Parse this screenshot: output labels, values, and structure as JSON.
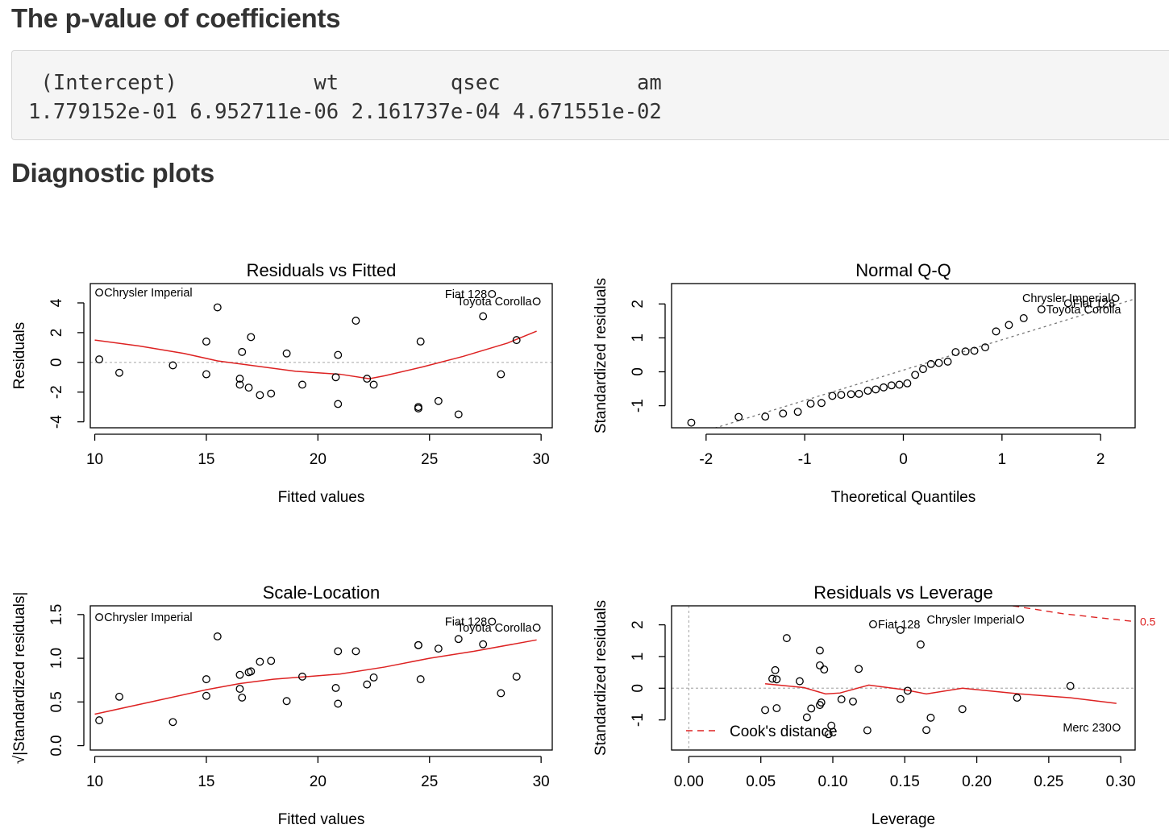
{
  "headings": {
    "pvalue": "The p-value of coefficients",
    "diagnostic": "Diagnostic plots"
  },
  "console_output": {
    "names": [
      "(Intercept)",
      "wt",
      "qsec",
      "am"
    ],
    "values": [
      "1.779152e-01",
      "6.952711e-06",
      "2.161737e-04",
      "4.671551e-02"
    ]
  },
  "colors": {
    "smoother": "#dd2222",
    "reference": "#b0b0b0",
    "qqline": "#777777"
  },
  "chart_data": [
    {
      "type": "scatter",
      "title": "Residuals vs Fitted",
      "xlabel": "Fitted values",
      "ylabel": "Residuals",
      "xlim": [
        9.8,
        30.5
      ],
      "ylim": [
        -4.4,
        5.3
      ],
      "xticks": [
        10,
        15,
        20,
        25,
        30
      ],
      "yticks": [
        -4,
        -2,
        0,
        2,
        4
      ],
      "grid": false,
      "hline": 0,
      "points": [
        [
          10.2,
          4.7
        ],
        [
          10.2,
          0.2
        ],
        [
          11.1,
          -0.7
        ],
        [
          13.5,
          -0.2
        ],
        [
          15.0,
          1.4
        ],
        [
          15.0,
          -0.8
        ],
        [
          15.5,
          3.7
        ],
        [
          16.5,
          -1.1
        ],
        [
          16.5,
          -1.5
        ],
        [
          16.6,
          0.7
        ],
        [
          16.9,
          -1.7
        ],
        [
          17.0,
          1.7
        ],
        [
          17.4,
          -2.2
        ],
        [
          17.9,
          -2.1
        ],
        [
          18.6,
          0.6
        ],
        [
          19.3,
          -1.5
        ],
        [
          20.8,
          -1.0
        ],
        [
          20.9,
          0.5
        ],
        [
          20.9,
          -2.8
        ],
        [
          21.7,
          2.8
        ],
        [
          22.2,
          -1.1
        ],
        [
          22.5,
          -1.5
        ],
        [
          24.5,
          -3.0
        ],
        [
          24.5,
          -3.1
        ],
        [
          24.6,
          1.4
        ],
        [
          25.4,
          -2.6
        ],
        [
          26.3,
          -3.5
        ],
        [
          27.4,
          3.1
        ],
        [
          27.8,
          4.6
        ],
        [
          28.2,
          -0.8
        ],
        [
          28.9,
          1.5
        ],
        [
          29.8,
          4.1
        ]
      ],
      "smoother": [
        [
          10.0,
          1.5
        ],
        [
          12.0,
          1.1
        ],
        [
          14.0,
          0.6
        ],
        [
          15.5,
          0.1
        ],
        [
          17.0,
          -0.2
        ],
        [
          19.0,
          -0.6
        ],
        [
          21.0,
          -0.8
        ],
        [
          22.3,
          -1.1
        ],
        [
          23.0,
          -0.9
        ],
        [
          24.7,
          -0.3
        ],
        [
          26.5,
          0.4
        ],
        [
          28.5,
          1.3
        ],
        [
          29.8,
          2.1
        ]
      ],
      "labels": [
        {
          "text": "Chrysler Imperial",
          "x": 10.2,
          "y": 4.7,
          "side": "right"
        },
        {
          "text": "Fiat 128",
          "x": 27.8,
          "y": 4.6,
          "side": "left"
        },
        {
          "text": "Toyota Corolla",
          "x": 29.8,
          "y": 4.1,
          "side": "left"
        }
      ]
    },
    {
      "type": "scatter",
      "title": "Normal Q-Q",
      "xlabel": "Theoretical Quantiles",
      "ylabel": "Standardized residuals",
      "xlim": [
        -2.35,
        2.35
      ],
      "ylim": [
        -1.65,
        2.6
      ],
      "xticks": [
        -2,
        -1,
        0,
        1,
        2
      ],
      "yticks": [
        -1,
        0,
        1,
        2
      ],
      "grid": false,
      "qqline": [
        [
          -2.35,
          -2.05
        ],
        [
          2.35,
          2.15
        ]
      ],
      "points": [
        [
          -2.15,
          -1.5
        ],
        [
          -1.67,
          -1.33
        ],
        [
          -1.4,
          -1.32
        ],
        [
          -1.22,
          -1.23
        ],
        [
          -1.07,
          -1.18
        ],
        [
          -0.94,
          -0.94
        ],
        [
          -0.83,
          -0.92
        ],
        [
          -0.72,
          -0.71
        ],
        [
          -0.63,
          -0.68
        ],
        [
          -0.53,
          -0.66
        ],
        [
          -0.45,
          -0.65
        ],
        [
          -0.36,
          -0.56
        ],
        [
          -0.28,
          -0.52
        ],
        [
          -0.2,
          -0.46
        ],
        [
          -0.12,
          -0.4
        ],
        [
          -0.04,
          -0.38
        ],
        [
          0.04,
          -0.34
        ],
        [
          0.12,
          -0.09
        ],
        [
          0.2,
          0.08
        ],
        [
          0.28,
          0.23
        ],
        [
          0.36,
          0.26
        ],
        [
          0.45,
          0.3
        ],
        [
          0.53,
          0.58
        ],
        [
          0.63,
          0.6
        ],
        [
          0.72,
          0.62
        ],
        [
          0.83,
          0.72
        ],
        [
          0.94,
          1.19
        ],
        [
          1.07,
          1.38
        ],
        [
          1.22,
          1.58
        ],
        [
          1.4,
          1.84
        ],
        [
          1.67,
          2.02
        ],
        [
          2.15,
          2.17
        ]
      ],
      "labels": [
        {
          "text": "Chrysler Imperial",
          "x": 2.15,
          "y": 2.17,
          "side": "left"
        },
        {
          "text": "Fiat 128",
          "x": 1.67,
          "y": 2.02,
          "side": "right"
        },
        {
          "text": "Toyota Corolla",
          "x": 1.4,
          "y": 1.84,
          "side": "right"
        }
      ]
    },
    {
      "type": "scatter",
      "title": "Scale-Location",
      "xlabel": "Fitted values",
      "ylabel": "√|Standardized residuals|",
      "xlim": [
        9.8,
        30.5
      ],
      "ylim": [
        -0.05,
        1.6
      ],
      "xticks": [
        10,
        15,
        20,
        25,
        30
      ],
      "yticks": [
        0.0,
        0.5,
        1.0,
        1.5
      ],
      "grid": false,
      "points": [
        [
          10.2,
          1.47
        ],
        [
          10.2,
          0.29
        ],
        [
          11.1,
          0.56
        ],
        [
          13.5,
          0.27
        ],
        [
          15.0,
          0.76
        ],
        [
          15.0,
          0.57
        ],
        [
          15.5,
          1.25
        ],
        [
          16.5,
          0.81
        ],
        [
          16.5,
          0.65
        ],
        [
          16.6,
          0.55
        ],
        [
          16.9,
          0.84
        ],
        [
          17.0,
          0.85
        ],
        [
          17.4,
          0.96
        ],
        [
          17.9,
          0.97
        ],
        [
          18.6,
          0.51
        ],
        [
          19.3,
          0.79
        ],
        [
          20.8,
          0.66
        ],
        [
          20.9,
          0.48
        ],
        [
          20.9,
          1.08
        ],
        [
          21.7,
          1.08
        ],
        [
          22.2,
          0.7
        ],
        [
          22.5,
          0.78
        ],
        [
          24.5,
          1.15
        ],
        [
          24.5,
          1.15
        ],
        [
          24.6,
          0.76
        ],
        [
          25.4,
          1.11
        ],
        [
          26.3,
          1.22
        ],
        [
          27.4,
          1.16
        ],
        [
          27.8,
          1.42
        ],
        [
          28.2,
          0.6
        ],
        [
          28.9,
          0.79
        ],
        [
          29.8,
          1.35
        ]
      ],
      "smoother": [
        [
          10.0,
          0.36
        ],
        [
          12.5,
          0.5
        ],
        [
          15.0,
          0.64
        ],
        [
          16.5,
          0.71
        ],
        [
          18.0,
          0.76
        ],
        [
          19.5,
          0.79
        ],
        [
          21.0,
          0.82
        ],
        [
          23.0,
          0.9
        ],
        [
          25.0,
          1.0
        ],
        [
          27.0,
          1.08
        ],
        [
          29.8,
          1.21
        ]
      ],
      "labels": [
        {
          "text": "Chrysler Imperial",
          "x": 10.2,
          "y": 1.47,
          "side": "right"
        },
        {
          "text": "Fiat 128",
          "x": 27.8,
          "y": 1.42,
          "side": "left"
        },
        {
          "text": "Toyota Corolla",
          "x": 29.8,
          "y": 1.35,
          "side": "left"
        }
      ]
    },
    {
      "type": "scatter",
      "title": "Residuals vs Leverage",
      "xlabel": "Leverage",
      "ylabel": "Standardized residuals",
      "xlim": [
        -0.012,
        0.31
      ],
      "ylim": [
        -1.95,
        2.6
      ],
      "xticks": [
        0.0,
        0.05,
        0.1,
        0.15,
        0.2,
        0.25,
        0.3
      ],
      "yticks": [
        -1,
        0,
        1,
        2
      ],
      "grid": false,
      "hline": 0,
      "vline": 0,
      "points": [
        [
          0.053,
          -0.69
        ],
        [
          0.058,
          0.3
        ],
        [
          0.06,
          0.57
        ],
        [
          0.061,
          -0.63
        ],
        [
          0.061,
          0.28
        ],
        [
          0.068,
          1.58
        ],
        [
          0.077,
          0.22
        ],
        [
          0.082,
          -0.92
        ],
        [
          0.085,
          -0.64
        ],
        [
          0.091,
          -0.53
        ],
        [
          0.091,
          0.72
        ],
        [
          0.091,
          1.19
        ],
        [
          0.092,
          -0.45
        ],
        [
          0.094,
          0.59
        ],
        [
          0.097,
          -1.45
        ],
        [
          0.099,
          -1.18
        ],
        [
          0.106,
          -0.35
        ],
        [
          0.114,
          -0.42
        ],
        [
          0.118,
          0.61
        ],
        [
          0.124,
          -1.33
        ],
        [
          0.128,
          2.02
        ],
        [
          0.147,
          1.84
        ],
        [
          0.147,
          -0.34
        ],
        [
          0.152,
          -0.08
        ],
        [
          0.165,
          -1.32
        ],
        [
          0.168,
          -0.93
        ],
        [
          0.161,
          1.38
        ],
        [
          0.19,
          -0.66
        ],
        [
          0.228,
          -0.3
        ],
        [
          0.23,
          2.17
        ],
        [
          0.265,
          0.07
        ],
        [
          0.297,
          -1.24
        ]
      ],
      "smoother": [
        [
          0.053,
          0.14
        ],
        [
          0.08,
          0.02
        ],
        [
          0.095,
          -0.18
        ],
        [
          0.105,
          -0.15
        ],
        [
          0.125,
          0.1
        ],
        [
          0.15,
          -0.05
        ],
        [
          0.165,
          -0.18
        ],
        [
          0.19,
          0.0
        ],
        [
          0.23,
          -0.18
        ],
        [
          0.265,
          -0.3
        ],
        [
          0.297,
          -0.48
        ]
      ],
      "cooks_contour": {
        "level": "0.5",
        "points": [
          [
            0.225,
            2.6
          ],
          [
            0.26,
            2.35
          ],
          [
            0.31,
            2.1
          ]
        ]
      },
      "legend": {
        "text": "Cook's distance",
        "position": "bottom-left"
      },
      "labels": [
        {
          "text": "Fiat 128",
          "x": 0.128,
          "y": 2.02,
          "side": "right"
        },
        {
          "text": "Chrysler Imperial",
          "x": 0.23,
          "y": 2.17,
          "side": "left"
        },
        {
          "text": "Merc 230",
          "x": 0.297,
          "y": -1.24,
          "side": "left"
        }
      ]
    }
  ]
}
